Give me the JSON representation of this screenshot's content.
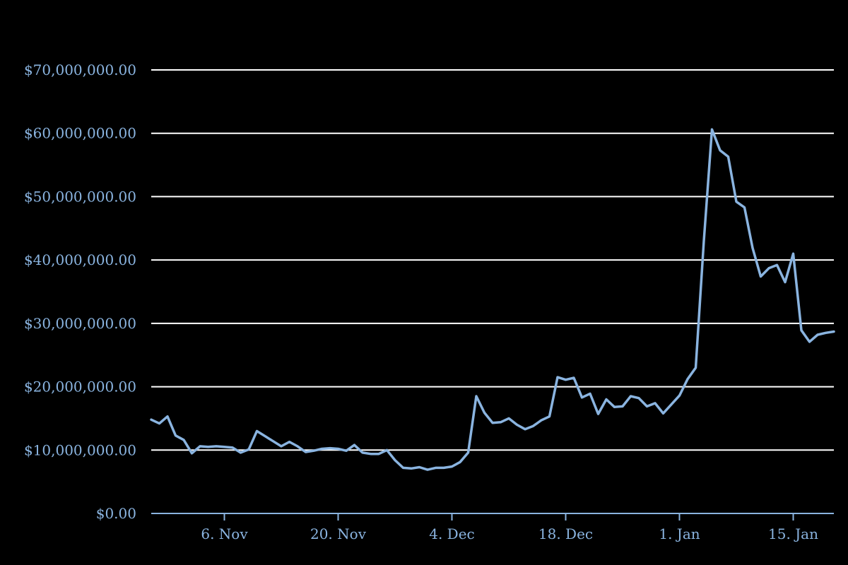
{
  "chart_data": {
    "type": "line",
    "title": "",
    "xlabel": "",
    "ylabel": "",
    "ylim": [
      0,
      70000000
    ],
    "y_ticks": [
      {
        "value": 0,
        "label": "$0.00"
      },
      {
        "value": 10000000,
        "label": "$10,000,000.00"
      },
      {
        "value": 20000000,
        "label": "$20,000,000.00"
      },
      {
        "value": 30000000,
        "label": "$30,000,000.00"
      },
      {
        "value": 40000000,
        "label": "$40,000,000.00"
      },
      {
        "value": 50000000,
        "label": "$50,000,000.00"
      },
      {
        "value": 60000000,
        "label": "$60,000,000.00"
      },
      {
        "value": 70000000,
        "label": "$70,000,000.00"
      }
    ],
    "x_range": [
      "2017-10-28",
      "2018-01-20"
    ],
    "x_ticks": [
      {
        "date": "2017-11-06",
        "label": "6. Nov"
      },
      {
        "date": "2017-11-20",
        "label": "20. Nov"
      },
      {
        "date": "2017-12-04",
        "label": "4. Dec"
      },
      {
        "date": "2017-12-18",
        "label": "18. Dec"
      },
      {
        "date": "2018-01-01",
        "label": "1. Jan"
      },
      {
        "date": "2018-01-15",
        "label": "15. Jan"
      }
    ],
    "grid": true,
    "legend": "none",
    "colors": {
      "background": "#000000",
      "line": "#8ab4e0",
      "grid": "#ffffff",
      "axis_text": "#8ab4e0"
    },
    "series": [
      {
        "points": [
          [
            "2017-10-28",
            14800000
          ],
          [
            "2017-10-29",
            14200000
          ],
          [
            "2017-10-30",
            15300000
          ],
          [
            "2017-10-31",
            12300000
          ],
          [
            "2017-11-01",
            11600000
          ],
          [
            "2017-11-02",
            9500000
          ],
          [
            "2017-11-03",
            10600000
          ],
          [
            "2017-11-04",
            10500000
          ],
          [
            "2017-11-05",
            10600000
          ],
          [
            "2017-11-06",
            10500000
          ],
          [
            "2017-11-07",
            10400000
          ],
          [
            "2017-11-08",
            9600000
          ],
          [
            "2017-11-09",
            10100000
          ],
          [
            "2017-11-10",
            13000000
          ],
          [
            "2017-11-11",
            12200000
          ],
          [
            "2017-11-12",
            11400000
          ],
          [
            "2017-11-13",
            10600000
          ],
          [
            "2017-11-14",
            11300000
          ],
          [
            "2017-11-15",
            10600000
          ],
          [
            "2017-11-16",
            9700000
          ],
          [
            "2017-11-17",
            9900000
          ],
          [
            "2017-11-18",
            10200000
          ],
          [
            "2017-11-19",
            10300000
          ],
          [
            "2017-11-20",
            10200000
          ],
          [
            "2017-11-21",
            9900000
          ],
          [
            "2017-11-22",
            10800000
          ],
          [
            "2017-11-23",
            9600000
          ],
          [
            "2017-11-24",
            9400000
          ],
          [
            "2017-11-25",
            9400000
          ],
          [
            "2017-11-26",
            10000000
          ],
          [
            "2017-11-27",
            8400000
          ],
          [
            "2017-11-28",
            7200000
          ],
          [
            "2017-11-29",
            7100000
          ],
          [
            "2017-11-30",
            7300000
          ],
          [
            "2017-12-01",
            6900000
          ],
          [
            "2017-12-02",
            7200000
          ],
          [
            "2017-12-03",
            7200000
          ],
          [
            "2017-12-04",
            7400000
          ],
          [
            "2017-12-05",
            8100000
          ],
          [
            "2017-12-06",
            9600000
          ],
          [
            "2017-12-07",
            18500000
          ],
          [
            "2017-12-08",
            15900000
          ],
          [
            "2017-12-09",
            14300000
          ],
          [
            "2017-12-10",
            14400000
          ],
          [
            "2017-12-11",
            15000000
          ],
          [
            "2017-12-12",
            14000000
          ],
          [
            "2017-12-13",
            13300000
          ],
          [
            "2017-12-14",
            13800000
          ],
          [
            "2017-12-15",
            14700000
          ],
          [
            "2017-12-16",
            15300000
          ],
          [
            "2017-12-17",
            21500000
          ],
          [
            "2017-12-18",
            21100000
          ],
          [
            "2017-12-19",
            21400000
          ],
          [
            "2017-12-20",
            18300000
          ],
          [
            "2017-12-21",
            18900000
          ],
          [
            "2017-12-22",
            15700000
          ],
          [
            "2017-12-23",
            18000000
          ],
          [
            "2017-12-24",
            16800000
          ],
          [
            "2017-12-25",
            16900000
          ],
          [
            "2017-12-26",
            18500000
          ],
          [
            "2017-12-27",
            18200000
          ],
          [
            "2017-12-28",
            16900000
          ],
          [
            "2017-12-29",
            17400000
          ],
          [
            "2017-12-30",
            15800000
          ],
          [
            "2017-12-31",
            17200000
          ],
          [
            "2018-01-01",
            18600000
          ],
          [
            "2018-01-02",
            21200000
          ],
          [
            "2018-01-03",
            23000000
          ],
          [
            "2018-01-04",
            43000000
          ],
          [
            "2018-01-05",
            60600000
          ],
          [
            "2018-01-06",
            57300000
          ],
          [
            "2018-01-07",
            56300000
          ],
          [
            "2018-01-08",
            49200000
          ],
          [
            "2018-01-09",
            48300000
          ],
          [
            "2018-01-10",
            41900000
          ],
          [
            "2018-01-11",
            37400000
          ],
          [
            "2018-01-12",
            38700000
          ],
          [
            "2018-01-13",
            39200000
          ],
          [
            "2018-01-14",
            36500000
          ],
          [
            "2018-01-15",
            41000000
          ],
          [
            "2018-01-16",
            28900000
          ],
          [
            "2018-01-17",
            27100000
          ],
          [
            "2018-01-18",
            28200000
          ],
          [
            "2018-01-19",
            28500000
          ],
          [
            "2018-01-20",
            28700000
          ]
        ]
      }
    ]
  }
}
